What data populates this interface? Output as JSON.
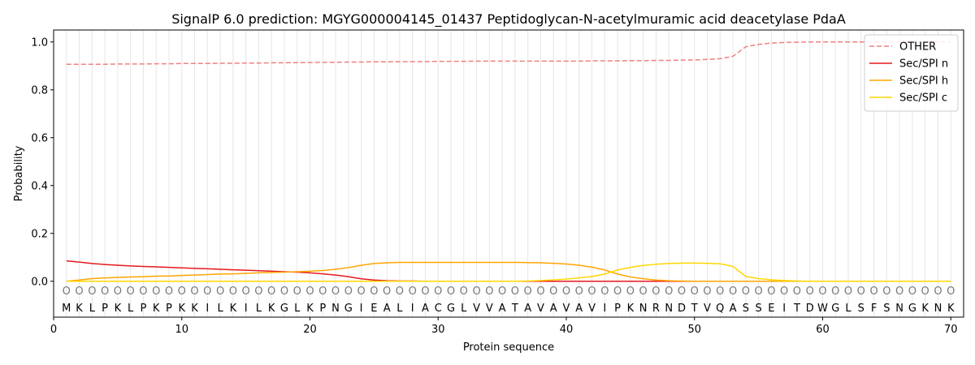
{
  "chart_data": {
    "type": "line",
    "title": "SignalP 6.0 prediction: MGYG000004145_01437 Peptidoglycan-N-acetylmuramic acid deacetylase PdaA",
    "xlabel": "Protein sequence",
    "ylabel": "Probability",
    "xlim": [
      0,
      71
    ],
    "ylim": [
      -0.15,
      1.05
    ],
    "xticks": [
      0,
      10,
      20,
      30,
      40,
      50,
      60,
      70
    ],
    "yticks": [
      0.0,
      0.2,
      0.4,
      0.6,
      0.8,
      1.0
    ],
    "xtick_labels": [
      "0",
      "10",
      "20",
      "30",
      "40",
      "50",
      "60",
      "70"
    ],
    "ytick_labels": [
      "0.0",
      "0.2",
      "0.4",
      "0.6",
      "0.8",
      "1.0"
    ],
    "grid": "vertical per residue",
    "legend_position": "top-right",
    "sequence": [
      "M",
      "K",
      "L",
      "P",
      "K",
      "L",
      "P",
      "K",
      "P",
      "K",
      "K",
      "I",
      "L",
      "K",
      "I",
      "L",
      "K",
      "G",
      "L",
      "K",
      "P",
      "N",
      "G",
      "I",
      "E",
      "A",
      "L",
      "I",
      "A",
      "C",
      "G",
      "L",
      "V",
      "V",
      "A",
      "T",
      "A",
      "V",
      "A",
      "V",
      "A",
      "V",
      "I",
      "P",
      "K",
      "N",
      "R",
      "N",
      "D",
      "T",
      "V",
      "Q",
      "A",
      "S",
      "S",
      "E",
      "I",
      "T",
      "D",
      "W",
      "G",
      "L",
      "S",
      "F",
      "S",
      "N",
      "G",
      "K",
      "N",
      "K"
    ],
    "predicted_labels": [
      "O",
      "O",
      "O",
      "O",
      "O",
      "O",
      "O",
      "O",
      "O",
      "O",
      "O",
      "O",
      "O",
      "O",
      "O",
      "O",
      "O",
      "O",
      "O",
      "O",
      "O",
      "O",
      "O",
      "O",
      "O",
      "O",
      "O",
      "O",
      "O",
      "O",
      "O",
      "O",
      "O",
      "O",
      "O",
      "O",
      "O",
      "O",
      "O",
      "O",
      "O",
      "O",
      "O",
      "O",
      "O",
      "O",
      "O",
      "O",
      "O",
      "O",
      "O",
      "O",
      "O",
      "O",
      "O",
      "O",
      "O",
      "O",
      "O",
      "O",
      "O",
      "O",
      "O",
      "O",
      "O",
      "O",
      "O",
      "O",
      "O",
      "O"
    ],
    "x": [
      1,
      2,
      3,
      4,
      5,
      6,
      7,
      8,
      9,
      10,
      11,
      12,
      13,
      14,
      15,
      16,
      17,
      18,
      19,
      20,
      21,
      22,
      23,
      24,
      25,
      26,
      27,
      28,
      29,
      30,
      31,
      32,
      33,
      34,
      35,
      36,
      37,
      38,
      39,
      40,
      41,
      42,
      43,
      44,
      45,
      46,
      47,
      48,
      49,
      50,
      51,
      52,
      53,
      54,
      55,
      56,
      57,
      58,
      59,
      60,
      61,
      62,
      63,
      64,
      65,
      66,
      67,
      68,
      69,
      70
    ],
    "series": [
      {
        "name": "OTHER",
        "color": "#f08080",
        "dash": "dashed",
        "values": [
          0.907,
          0.907,
          0.907,
          0.907,
          0.908,
          0.908,
          0.908,
          0.909,
          0.909,
          0.91,
          0.91,
          0.91,
          0.911,
          0.911,
          0.912,
          0.912,
          0.913,
          0.913,
          0.914,
          0.914,
          0.915,
          0.915,
          0.916,
          0.916,
          0.917,
          0.917,
          0.918,
          0.918,
          0.918,
          0.919,
          0.919,
          0.919,
          0.92,
          0.92,
          0.92,
          0.92,
          0.92,
          0.92,
          0.92,
          0.92,
          0.92,
          0.921,
          0.921,
          0.921,
          0.922,
          0.922,
          0.923,
          0.923,
          0.924,
          0.925,
          0.927,
          0.93,
          0.94,
          0.98,
          0.99,
          0.995,
          0.998,
          0.999,
          1.0,
          1.0,
          1.0,
          1.0,
          1.0,
          1.0,
          1.0,
          1.0,
          1.0,
          1.0,
          1.0,
          1.0
        ]
      },
      {
        "name": "Sec/SPI n",
        "color": "#e41a1c",
        "dash": "solid",
        "values": [
          0.085,
          0.08,
          0.074,
          0.07,
          0.067,
          0.064,
          0.062,
          0.06,
          0.058,
          0.056,
          0.054,
          0.052,
          0.05,
          0.048,
          0.046,
          0.044,
          0.042,
          0.04,
          0.038,
          0.035,
          0.031,
          0.026,
          0.019,
          0.01,
          0.005,
          0.002,
          0.001,
          0.001,
          0.0,
          0.0,
          0.0,
          0.0,
          0.0,
          0.0,
          0.0,
          0.0,
          0.0,
          0.0,
          0.0,
          0.0,
          0.0,
          0.0,
          0.0,
          0.0,
          0.0,
          0.0,
          0.0,
          0.0,
          0.0,
          0.0,
          0.0,
          0.0,
          0.0,
          0.0,
          0.0,
          0.0,
          0.0,
          0.0,
          0.0,
          0.0,
          0.0,
          0.0,
          0.0,
          0.0,
          0.0,
          0.0,
          0.0,
          0.0,
          0.0,
          0.0
        ]
      },
      {
        "name": "Sec/SPI h",
        "color": "#ffa500",
        "dash": "solid",
        "values": [
          0.0,
          0.005,
          0.011,
          0.014,
          0.016,
          0.018,
          0.019,
          0.021,
          0.022,
          0.024,
          0.026,
          0.028,
          0.03,
          0.031,
          0.033,
          0.035,
          0.037,
          0.038,
          0.04,
          0.042,
          0.045,
          0.05,
          0.057,
          0.067,
          0.074,
          0.077,
          0.079,
          0.079,
          0.079,
          0.079,
          0.079,
          0.079,
          0.079,
          0.079,
          0.079,
          0.079,
          0.078,
          0.077,
          0.075,
          0.072,
          0.067,
          0.059,
          0.047,
          0.03,
          0.018,
          0.01,
          0.005,
          0.002,
          0.001,
          0.0,
          0.0,
          0.0,
          0.0,
          0.0,
          0.0,
          0.0,
          0.0,
          0.0,
          0.0,
          0.0,
          0.0,
          0.0,
          0.0,
          0.0,
          0.0,
          0.0,
          0.0,
          0.0,
          0.0,
          0.0
        ]
      },
      {
        "name": "Sec/SPI c",
        "color": "#ffd700",
        "dash": "solid",
        "values": [
          0.0,
          0.0,
          0.0,
          0.0,
          0.0,
          0.0,
          0.0,
          0.0,
          0.0,
          0.0,
          0.0,
          0.0,
          0.0,
          0.0,
          0.0,
          0.0,
          0.0,
          0.0,
          0.0,
          0.0,
          0.0,
          0.0,
          0.0,
          0.0,
          0.0,
          0.0,
          0.0,
          0.0,
          0.0,
          0.0,
          0.0,
          0.0,
          0.0,
          0.0,
          0.0,
          0.0,
          0.001,
          0.003,
          0.006,
          0.009,
          0.014,
          0.02,
          0.03,
          0.047,
          0.058,
          0.066,
          0.071,
          0.074,
          0.076,
          0.076,
          0.075,
          0.073,
          0.062,
          0.02,
          0.011,
          0.006,
          0.003,
          0.001,
          0.0,
          0.0,
          0.0,
          0.0,
          0.0,
          0.0,
          0.0,
          0.0,
          0.0,
          0.0,
          0.0,
          0.0
        ]
      }
    ]
  }
}
